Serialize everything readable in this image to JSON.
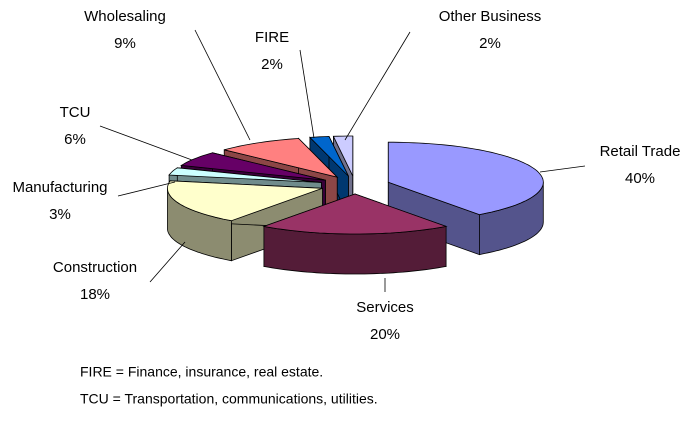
{
  "chart_data": {
    "type": "pie3d",
    "categories": [
      "Retail Trade",
      "Services",
      "Construction",
      "Manufacturing",
      "TCU",
      "Wholesaling",
      "FIRE",
      "Other Business"
    ],
    "values": [
      40,
      20,
      18,
      3,
      6,
      9,
      2,
      2
    ],
    "value_labels": [
      "40%",
      "20%",
      "18%",
      "3%",
      "6%",
      "9%",
      "2%",
      "2%"
    ],
    "colors": [
      "#9999ff",
      "#993366",
      "#ffffcc",
      "#ccffff",
      "#660066",
      "#ff8080",
      "#0066cc",
      "#ccccff"
    ],
    "notes": [
      "FIRE = Finance, insurance, real estate.",
      "TCU = Transportation, communications, utilities."
    ]
  }
}
